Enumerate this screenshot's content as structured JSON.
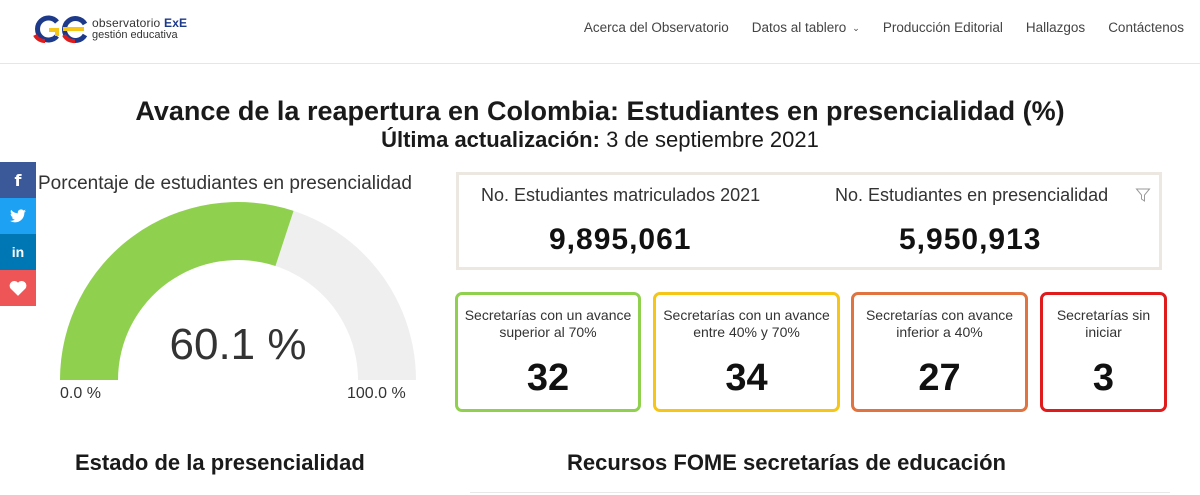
{
  "header": {
    "logo_line1": "observatorio",
    "logo_line1_brand": "ExE",
    "logo_line2": "gestión educativa",
    "nav": [
      {
        "label": "Acerca del Observatorio"
      },
      {
        "label": "Datos al tablero",
        "has_dropdown": true
      },
      {
        "label": "Producción Editorial"
      },
      {
        "label": "Hallazgos"
      },
      {
        "label": "Contáctenos"
      }
    ]
  },
  "social": [
    {
      "icon": "facebook-icon",
      "glyph": "f",
      "color": "#3b5998"
    },
    {
      "icon": "twitter-icon",
      "glyph": "🐦",
      "color": "#1da1f2"
    },
    {
      "icon": "linkedin-icon",
      "glyph": "in",
      "color": "#0077b5"
    },
    {
      "icon": "heart-icon",
      "glyph": "♥",
      "color": "#ee5556"
    }
  ],
  "page": {
    "title": "Avance de la reapertura en Colombia: Estudiantes en presencialidad (%)",
    "update_label": "Última actualización:",
    "update_date": "3 de septiembre 2021"
  },
  "gauge": {
    "title": "Porcentaje de estudiantes en presencialidad",
    "value_label": "60.1 %",
    "value_fraction": 0.601,
    "min_label": "0.0 %",
    "max_label": "100.0 %",
    "fill_color": "#8fd14f",
    "track_color": "#f0efef"
  },
  "students": {
    "enrolled_label": "No. Estudiantes matriculados 2021",
    "enrolled_value": "9,895,061",
    "in_person_label": "No. Estudiantes en presencialidad",
    "in_person_value": "5,950,913"
  },
  "kpis": [
    {
      "label": "Secretarías con un avance superior al 70%",
      "value": "32",
      "color": "#8fd14f"
    },
    {
      "label": "Secretarías con un avance entre 40% y 70%",
      "value": "34",
      "color": "#f5c518"
    },
    {
      "label": "Secretarías con avance inferior a 40%",
      "value": "27",
      "color": "#e0733f"
    },
    {
      "label": "Secretarías sin iniciar",
      "value": "3",
      "color": "#e01b1b"
    }
  ],
  "sections": {
    "left_title": "Estado de la presencialidad",
    "right_title": "Recursos FOME secretarías de educación"
  }
}
